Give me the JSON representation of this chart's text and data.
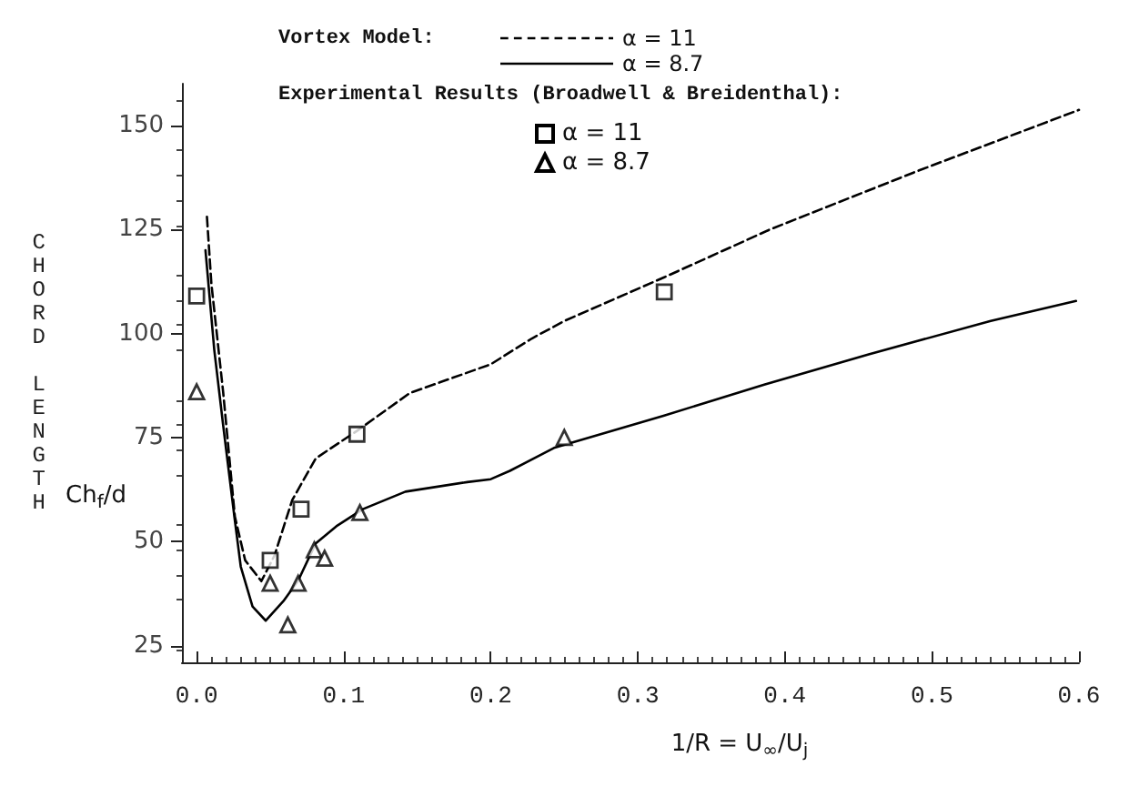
{
  "chart_data": {
    "type": "line",
    "xlabel": "1/R = U$_{∞}$/U$_{j}$",
    "ylabel": "CHORD LENGTH",
    "annotations": [
      "Vortex Model:",
      "Experimental Results (Broadwell & Breidenthal):",
      "Ch$_{f}$/d"
    ],
    "xlim": [
      -0.01,
      0.6
    ],
    "xticks": [
      {
        "value": 0,
        "label": "0.0"
      },
      {
        "value": 0.1,
        "label": "0.1"
      },
      {
        "value": 0.2,
        "label": "0.2"
      },
      {
        "value": 0.3,
        "label": "0.3"
      },
      {
        "value": 0.4,
        "label": "0.4"
      },
      {
        "value": 0.5,
        "label": "0.5"
      },
      {
        "value": 0.6,
        "label": "0.6"
      }
    ],
    "ylim": [
      21,
      160
    ],
    "yticks": [
      25,
      50,
      75,
      100,
      125,
      150
    ],
    "grid": false,
    "legend": "top",
    "series": [
      {
        "name": "α = 11",
        "line_style": "dashed",
        "marker": "none",
        "color": "#000000",
        "x": [
          0.007,
          0.01,
          0.018,
          0.026,
          0.033,
          0.044,
          0.053,
          0.065,
          0.081,
          0.109,
          0.145,
          0.2,
          0.228,
          0.25,
          0.318,
          0.39,
          0.49,
          0.6
        ],
        "values": [
          128,
          112,
          86,
          56,
          45.5,
          40.5,
          46.7,
          60,
          70,
          76.6,
          85.7,
          92.6,
          98.8,
          103,
          113.5,
          125,
          139,
          153.7
        ]
      },
      {
        "name": "α = 8.7",
        "line_style": "solid",
        "marker": "none",
        "color": "#000000",
        "x": [
          0.006,
          0.012,
          0.018,
          0.026,
          0.03,
          0.038,
          0.047,
          0.059,
          0.069,
          0.081,
          0.095,
          0.113,
          0.142,
          0.184,
          0.2,
          0.213,
          0.243,
          0.318,
          0.386,
          0.457,
          0.54,
          0.598
        ],
        "values": [
          120,
          96,
          78,
          55,
          44,
          34.4,
          31,
          35.7,
          40.6,
          49.6,
          53.7,
          57.8,
          62,
          64.3,
          65,
          67,
          72.5,
          80.3,
          87.7,
          95,
          103,
          107.8
        ]
      },
      {
        "name": "α = 11",
        "type": "scatter",
        "marker": "square",
        "color": "#000000",
        "x": [
          0,
          0.05,
          0.071,
          0.109,
          0.318
        ],
        "values": [
          109,
          45.5,
          57.8,
          75.8,
          110
        ]
      },
      {
        "name": "α = 8.7",
        "type": "scatter",
        "marker": "triangle",
        "color": "#000000",
        "x": [
          0,
          0.05,
          0.062,
          0.069,
          0.08,
          0.087,
          0.111,
          0.25
        ],
        "values": [
          86,
          40,
          30,
          40,
          48,
          46,
          57,
          75
        ]
      }
    ]
  }
}
